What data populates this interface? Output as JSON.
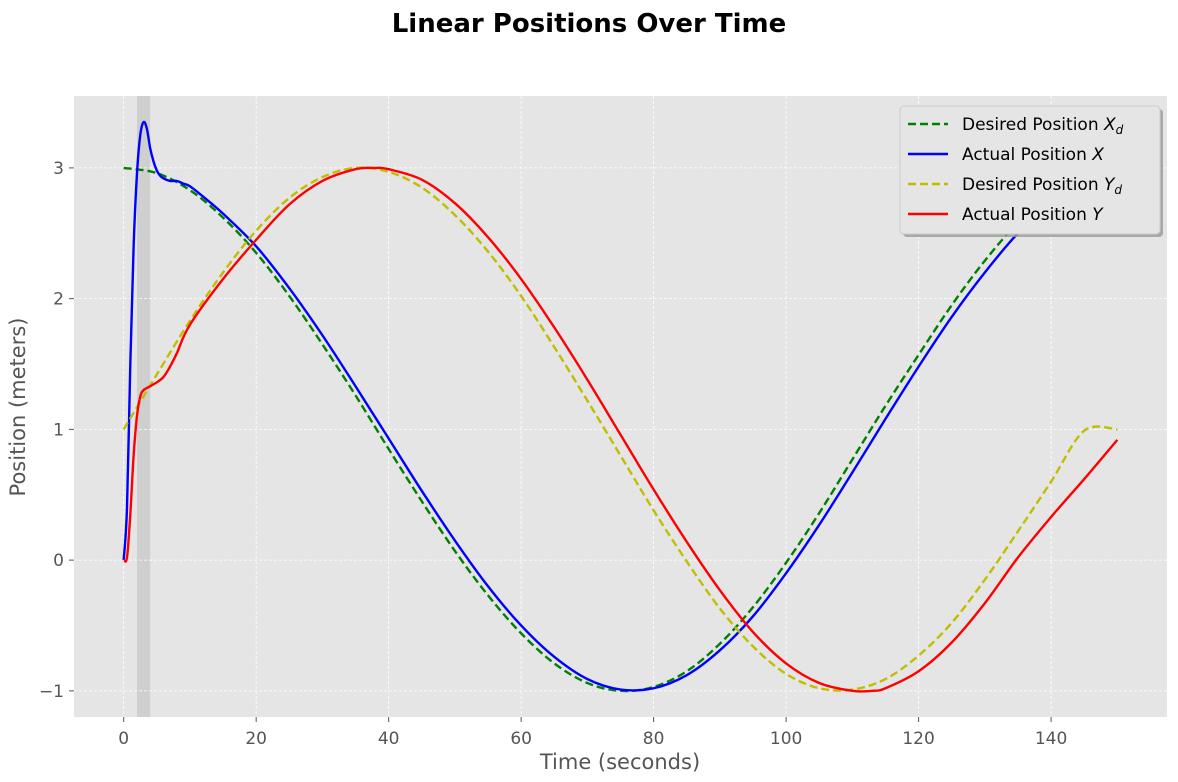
{
  "chart_data": {
    "type": "line",
    "title": "Linear Positions Over Time",
    "xlabel": "Time (seconds)",
    "ylabel": "Position (meters)",
    "xlim": [
      -7.5,
      157.5
    ],
    "ylim": [
      -1.2,
      3.55
    ],
    "xticks": [
      0,
      20,
      40,
      60,
      80,
      100,
      120,
      140
    ],
    "xtick_labels": [
      "0",
      "20",
      "40",
      "60",
      "80",
      "100",
      "120",
      "140"
    ],
    "yticks": [
      -1,
      0,
      1,
      2,
      3
    ],
    "ytick_labels": [
      "−1",
      "0",
      "1",
      "2",
      "3"
    ],
    "grid": true,
    "legend_position": "top-right",
    "shaded_region": {
      "x_start": 2,
      "x_end": 4
    },
    "series": [
      {
        "name": "Desired Position X_d",
        "legend_main": "Desired Position X",
        "legend_sub": "d",
        "color": "#008000",
        "dashed": true,
        "x": [
          0,
          5,
          10,
          15,
          20,
          25,
          30,
          35,
          40,
          45,
          50,
          55,
          60,
          65,
          70,
          75,
          80,
          85,
          90,
          95,
          100,
          105,
          110,
          115,
          120,
          125,
          130,
          135,
          140,
          145,
          150
        ],
        "y": [
          3.0,
          2.96,
          2.83,
          2.62,
          2.35,
          2.02,
          1.65,
          1.26,
          0.85,
          0.45,
          0.07,
          -0.27,
          -0.56,
          -0.79,
          -0.94,
          -1.0,
          -0.97,
          -0.85,
          -0.64,
          -0.36,
          -0.02,
          0.36,
          0.77,
          1.18,
          1.57,
          1.95,
          2.29,
          2.58,
          2.79,
          2.94,
          3.0
        ]
      },
      {
        "name": "Actual Position X",
        "legend_main": "Actual Position X",
        "legend_sub": "",
        "color": "#0000ff",
        "dashed": false,
        "x": [
          0,
          0.5,
          1,
          1.5,
          2,
          2.5,
          3,
          3.5,
          4,
          4.5,
          5,
          5.5,
          6,
          7,
          8,
          9,
          10,
          12,
          15,
          20,
          25,
          30,
          35,
          40,
          45,
          50,
          55,
          60,
          65,
          70,
          75,
          80,
          85,
          90,
          95,
          100,
          105,
          110,
          115,
          120,
          125,
          130,
          135,
          140,
          145,
          150
        ],
        "y": [
          0.0,
          0.4,
          1.5,
          2.4,
          2.95,
          3.25,
          3.35,
          3.3,
          3.15,
          3.05,
          2.98,
          2.94,
          2.92,
          2.9,
          2.9,
          2.88,
          2.86,
          2.78,
          2.65,
          2.4,
          2.08,
          1.72,
          1.33,
          0.93,
          0.53,
          0.15,
          -0.2,
          -0.5,
          -0.74,
          -0.91,
          -0.99,
          -0.98,
          -0.88,
          -0.69,
          -0.43,
          -0.1,
          0.27,
          0.67,
          1.08,
          1.48,
          1.86,
          2.2,
          2.5,
          2.73,
          2.89,
          2.97
        ]
      },
      {
        "name": "Desired Position Y_d",
        "legend_main": "Desired Position Y",
        "legend_sub": "d",
        "color": "#bfbf00",
        "dashed": true,
        "x": [
          0,
          5,
          10,
          15,
          20,
          25,
          30,
          35,
          40,
          45,
          50,
          55,
          60,
          65,
          70,
          75,
          80,
          85,
          90,
          95,
          100,
          105,
          110,
          115,
          120,
          125,
          130,
          135,
          140,
          145,
          150
        ],
        "y": [
          1.0,
          1.42,
          1.83,
          2.2,
          2.52,
          2.77,
          2.93,
          3.0,
          2.97,
          2.85,
          2.64,
          2.36,
          2.02,
          1.63,
          1.22,
          0.8,
          0.38,
          -0.01,
          -0.37,
          -0.66,
          -0.87,
          -0.98,
          -0.99,
          -0.91,
          -0.73,
          -0.48,
          -0.15,
          0.22,
          0.6,
          0.99,
          1.0
        ]
      },
      {
        "name": "Actual Position Y",
        "legend_main": "Actual Position Y",
        "legend_sub": "",
        "color": "#ff0000",
        "dashed": false,
        "x": [
          0,
          0.5,
          1,
          1.5,
          2,
          2.5,
          3,
          4,
          5,
          6,
          7,
          8,
          10,
          15,
          20,
          25,
          30,
          35,
          38,
          40,
          45,
          50,
          55,
          60,
          65,
          70,
          75,
          80,
          85,
          90,
          95,
          100,
          105,
          110,
          113,
          115,
          120,
          125,
          130,
          135,
          140,
          145,
          150
        ],
        "y": [
          0.0,
          0.02,
          0.35,
          0.8,
          1.1,
          1.25,
          1.3,
          1.33,
          1.36,
          1.4,
          1.48,
          1.58,
          1.8,
          2.15,
          2.45,
          2.72,
          2.9,
          2.99,
          3.0,
          2.99,
          2.91,
          2.73,
          2.47,
          2.15,
          1.78,
          1.38,
          0.96,
          0.54,
          0.14,
          -0.23,
          -0.55,
          -0.79,
          -0.94,
          -1.0,
          -1.0,
          -0.98,
          -0.85,
          -0.63,
          -0.33,
          0.02,
          0.33,
          0.62,
          0.92
        ]
      }
    ]
  }
}
